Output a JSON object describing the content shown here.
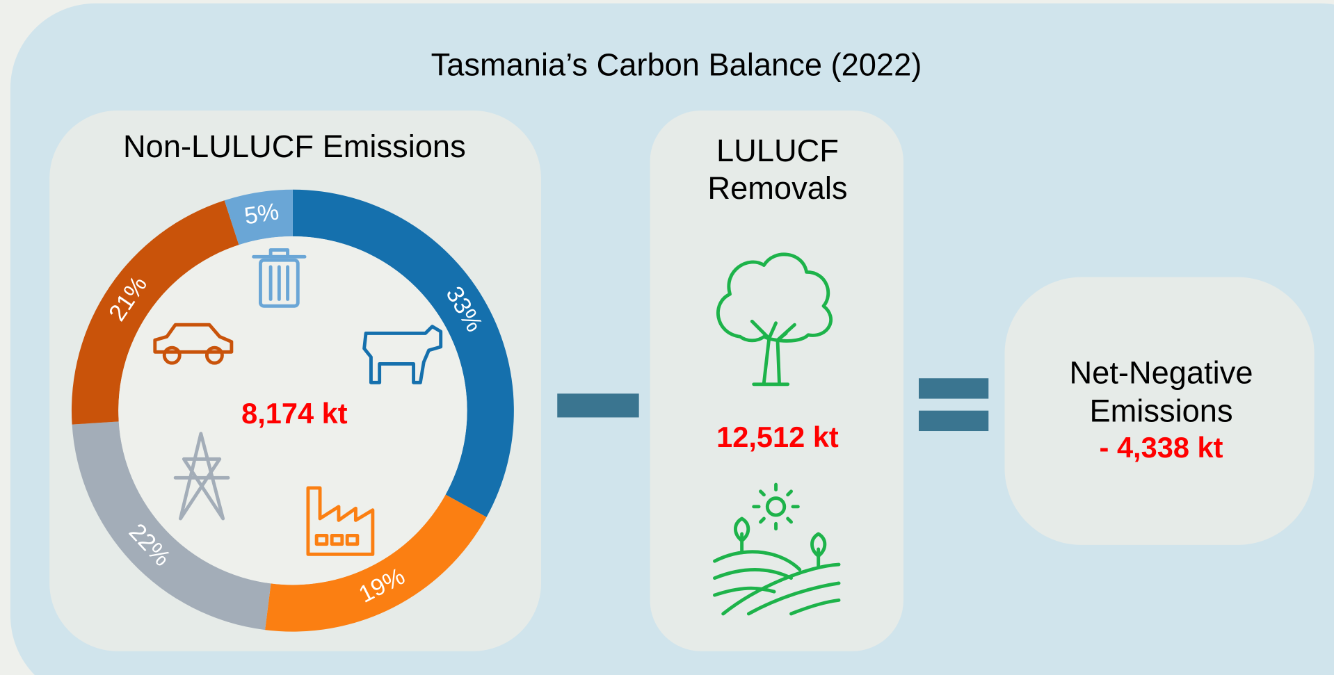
{
  "title": "Tasmania’s Carbon Balance (2022)",
  "emissions_panel": {
    "title": "Non-LULUCF Emissions",
    "total": "8,174 kt"
  },
  "removals_panel": {
    "title_lines": [
      "LULUCF",
      "Removals"
    ],
    "total": "12,512 kt"
  },
  "net_panel": {
    "title_lines": [
      "Net-Negative",
      "Emissions"
    ],
    "total": "- 4,338 kt"
  },
  "chart_data": {
    "type": "donut",
    "values": [
      33,
      19,
      22,
      21,
      5
    ],
    "value_labels": [
      "33%",
      "19%",
      "22%",
      "21%",
      "5%"
    ],
    "colors": [
      "#1570ad",
      "#fb7f12",
      "#a3adb8",
      "#c9530a",
      "#6aa6d6"
    ]
  }
}
